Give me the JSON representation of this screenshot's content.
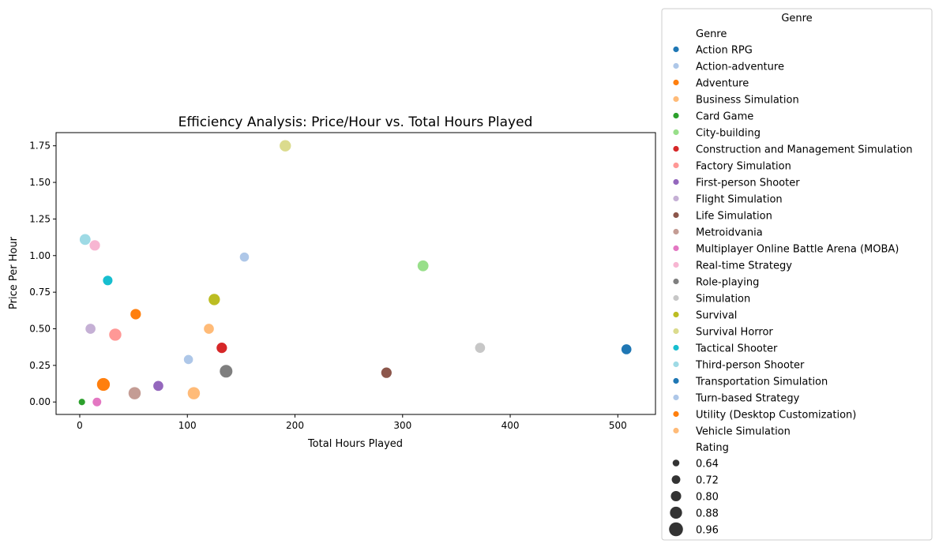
{
  "chart_data": {
    "type": "scatter",
    "title": "Efficiency Analysis: Price/Hour vs. Total Hours Played",
    "xlabel": "Total Hours Played",
    "ylabel": "Price Per Hour",
    "xlim": [
      -22,
      535
    ],
    "ylim": [
      -0.085,
      1.84
    ],
    "xticks": [
      0,
      100,
      200,
      300,
      400,
      500
    ],
    "yticks": [
      0.0,
      0.25,
      0.5,
      0.75,
      1.0,
      1.25,
      1.5,
      1.75
    ],
    "grid": false,
    "legend_placement": "outside-right",
    "legend": {
      "title": "Genre",
      "hue_header": "Genre",
      "size_header": "Rating",
      "size_entries": [
        "0.64",
        "0.72",
        "0.80",
        "0.88",
        "0.96"
      ],
      "size_values": [
        0.64,
        0.72,
        0.8,
        0.88,
        0.96
      ]
    },
    "genres": [
      {
        "name": "Action RPG",
        "color": "#1f77b4"
      },
      {
        "name": "Action-adventure",
        "color": "#aec7e8"
      },
      {
        "name": "Adventure",
        "color": "#ff7f0e"
      },
      {
        "name": "Business Simulation",
        "color": "#ffbb78"
      },
      {
        "name": "Card Game",
        "color": "#2ca02c"
      },
      {
        "name": "City-building",
        "color": "#98df8a"
      },
      {
        "name": "Construction and Management Simulation",
        "color": "#d62728"
      },
      {
        "name": "Factory Simulation",
        "color": "#ff9896"
      },
      {
        "name": "First-person Shooter",
        "color": "#9467bd"
      },
      {
        "name": "Flight Simulation",
        "color": "#c5b0d5"
      },
      {
        "name": "Life Simulation",
        "color": "#8c564b"
      },
      {
        "name": "Metroidvania",
        "color": "#c49c94"
      },
      {
        "name": "Multiplayer Online Battle Arena (MOBA)",
        "color": "#e377c2"
      },
      {
        "name": "Real-time Strategy",
        "color": "#f7b6d2"
      },
      {
        "name": "Role-playing",
        "color": "#7f7f7f"
      },
      {
        "name": "Simulation",
        "color": "#c7c7c7"
      },
      {
        "name": "Survival",
        "color": "#bcbd22"
      },
      {
        "name": "Survival Horror",
        "color": "#dbdb8d"
      },
      {
        "name": "Tactical Shooter",
        "color": "#17becf"
      },
      {
        "name": "Third-person Shooter",
        "color": "#9edae5"
      },
      {
        "name": "Transportation Simulation",
        "color": "#1f77b4"
      },
      {
        "name": "Turn-based Strategy",
        "color": "#aec7e8"
      },
      {
        "name": "Utility (Desktop Customization)",
        "color": "#ff7f0e"
      },
      {
        "name": "Vehicle Simulation",
        "color": "#ffbb78"
      }
    ],
    "points": [
      {
        "x": 508,
        "y": 0.36,
        "genre": "Action RPG",
        "rating": 0.82
      },
      {
        "x": 101,
        "y": 0.29,
        "genre": "Action-adventure",
        "rating": 0.78
      },
      {
        "x": 52,
        "y": 0.6,
        "genre": "Adventure",
        "rating": 0.84
      },
      {
        "x": 120,
        "y": 0.5,
        "genre": "Business Simulation",
        "rating": 0.82
      },
      {
        "x": 2,
        "y": 0.0,
        "genre": "Card Game",
        "rating": 0.66
      },
      {
        "x": 319,
        "y": 0.93,
        "genre": "City-building",
        "rating": 0.86
      },
      {
        "x": 132,
        "y": 0.37,
        "genre": "Construction and Management Simulation",
        "rating": 0.84
      },
      {
        "x": 33,
        "y": 0.46,
        "genre": "Factory Simulation",
        "rating": 0.92
      },
      {
        "x": 73,
        "y": 0.11,
        "genre": "First-person Shooter",
        "rating": 0.82
      },
      {
        "x": 10,
        "y": 0.5,
        "genre": "Flight Simulation",
        "rating": 0.82
      },
      {
        "x": 285,
        "y": 0.2,
        "genre": "Life Simulation",
        "rating": 0.84
      },
      {
        "x": 51,
        "y": 0.06,
        "genre": "Metroidvania",
        "rating": 0.92
      },
      {
        "x": 16,
        "y": 0.0,
        "genre": "Multiplayer Online Battle Arena (MOBA)",
        "rating": 0.76
      },
      {
        "x": 14,
        "y": 1.07,
        "genre": "Real-time Strategy",
        "rating": 0.84
      },
      {
        "x": 136,
        "y": 0.21,
        "genre": "Role-playing",
        "rating": 0.94
      },
      {
        "x": 372,
        "y": 0.37,
        "genre": "Simulation",
        "rating": 0.82
      },
      {
        "x": 125,
        "y": 0.7,
        "genre": "Survival",
        "rating": 0.88
      },
      {
        "x": 191,
        "y": 1.75,
        "genre": "Survival Horror",
        "rating": 0.88
      },
      {
        "x": 26,
        "y": 0.83,
        "genre": "Tactical Shooter",
        "rating": 0.8
      },
      {
        "x": 5,
        "y": 1.11,
        "genre": "Third-person Shooter",
        "rating": 0.86
      },
      {
        "x": 153,
        "y": 0.99,
        "genre": "Turn-based Strategy",
        "rating": 0.78
      },
      {
        "x": 22,
        "y": 0.12,
        "genre": "Utility (Desktop Customization)",
        "rating": 0.95
      },
      {
        "x": 106,
        "y": 0.06,
        "genre": "Vehicle Simulation",
        "rating": 0.92
      }
    ]
  }
}
